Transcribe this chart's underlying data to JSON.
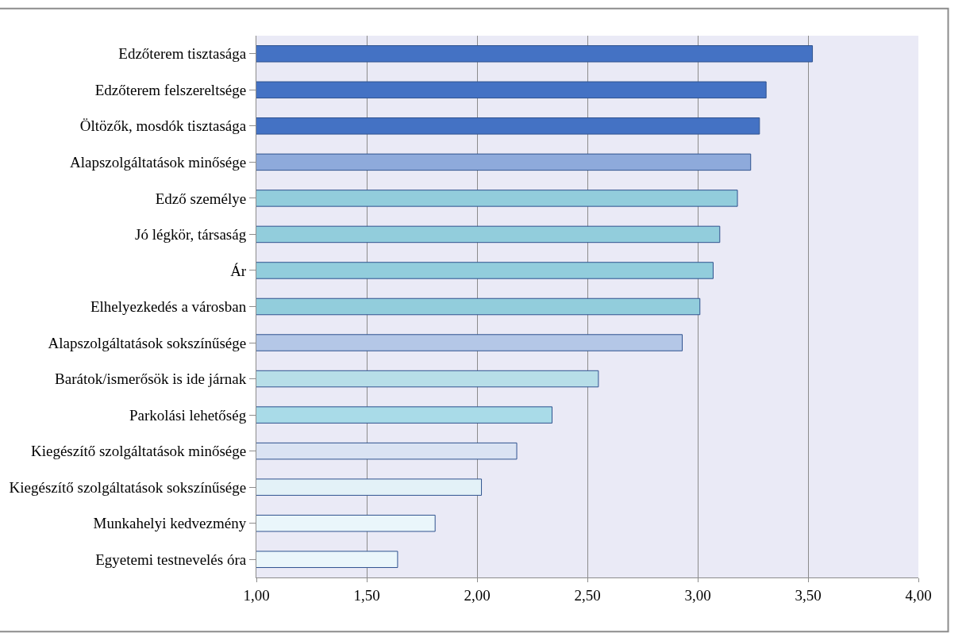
{
  "chart_data": {
    "type": "bar",
    "orientation": "horizontal",
    "categories": [
      "Edzőterem tisztasága",
      "Edzőterem felszereltsége",
      "Öltözők, mosdók tisztasága",
      "Alapszolgáltatások minősége",
      "Edző személye",
      "Jó légkör, társaság",
      "Ár",
      "Elhelyezkedés a városban",
      "Alapszolgáltatások sokszínűsége",
      "Barátok/ismerősök is ide járnak",
      "Parkolási lehetőség",
      "Kiegészítő szolgáltatások minősége",
      "Kiegészítő szolgáltatások sokszínűsége",
      "Munkahelyi kedvezmény",
      "Egyetemi testnevelés óra"
    ],
    "values": [
      3.52,
      3.31,
      3.28,
      3.24,
      3.18,
      3.1,
      3.07,
      3.01,
      2.93,
      2.55,
      2.34,
      2.18,
      2.02,
      1.81,
      1.64
    ],
    "colors": [
      "#4472c4",
      "#4472c4",
      "#4472c4",
      "#8eaadb",
      "#92cddc",
      "#92cddc",
      "#92cddc",
      "#92cddc",
      "#b4c7e7",
      "#b7dee8",
      "#a9dbe8",
      "#dae3f3",
      "#e3f1f7",
      "#eaf6fb",
      "#eaf6fb"
    ],
    "xlim": [
      1,
      4
    ],
    "xticks": [
      {
        "value": 1,
        "label": "1,00"
      },
      {
        "value": 1.5,
        "label": "1,50"
      },
      {
        "value": 2,
        "label": "2,00"
      },
      {
        "value": 2.5,
        "label": "2,50"
      },
      {
        "value": 3,
        "label": "3,00"
      },
      {
        "value": 3.5,
        "label": "3,50"
      },
      {
        "value": 4,
        "label": "4,00"
      }
    ],
    "grid": "x"
  }
}
